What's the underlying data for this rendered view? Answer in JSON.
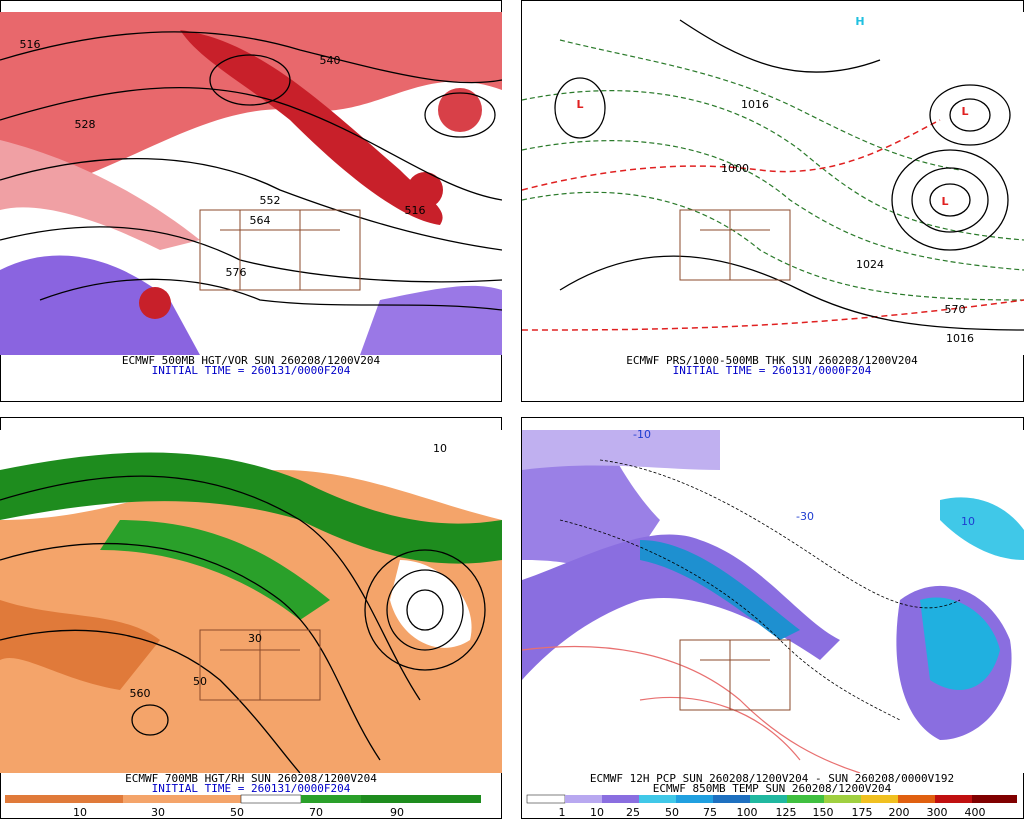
{
  "panels": [
    {
      "captions": [
        "ECMWF 500MB HGT/VOR SUN 260208/1200V204",
        "INITIAL TIME = 260131/0000F204"
      ],
      "map_labels": [
        "516",
        "528",
        "540",
        "552",
        "564",
        "576",
        "516"
      ]
    },
    {
      "captions": [
        "ECMWF PRS/1000-500MB THK SUN 260208/1200V204",
        "INITIAL TIME = 260131/0000F204"
      ],
      "map_labels": [
        "L",
        "L",
        "L",
        "H",
        "1016",
        "1000",
        "1024",
        "570",
        "1016"
      ]
    },
    {
      "captions": [
        "ECMWF 700MB HGT/RH SUN 260208/1200V204",
        "INITIAL TIME = 260131/0000F204"
      ],
      "map_labels": [
        "10",
        "30",
        "50",
        "560"
      ],
      "colorbar": [
        "10",
        "30",
        "50",
        "70",
        "90"
      ]
    },
    {
      "captions": [
        "ECMWF 12H PCP SUN 260208/1200V204 - SUN 260208/0000V192",
        "ECMWF 850MB TEMP SUN 260208/1200V204"
      ],
      "map_labels": [
        "-10",
        "10",
        "-30"
      ],
      "colorbar": [
        "1",
        "10",
        "25",
        "50",
        "75",
        "100",
        "125",
        "150",
        "175",
        "200",
        "300",
        "400"
      ]
    }
  ]
}
